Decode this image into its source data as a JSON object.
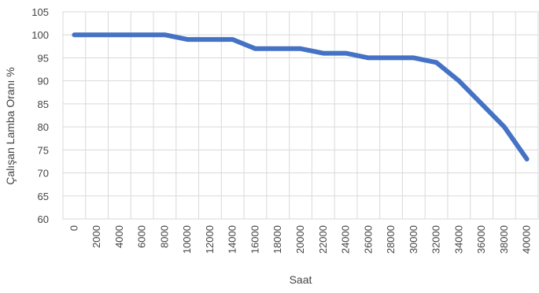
{
  "chart_data": {
    "type": "line",
    "xlabel": "Saat",
    "ylabel": "Çalışan Lamba Oranı %",
    "ylim": [
      60,
      105
    ],
    "yticks": [
      60,
      65,
      70,
      75,
      80,
      85,
      90,
      95,
      100,
      105
    ],
    "xlim": [
      -1000,
      41000
    ],
    "xticks": [
      0,
      2000,
      4000,
      6000,
      8000,
      10000,
      12000,
      14000,
      16000,
      18000,
      20000,
      22000,
      24000,
      26000,
      28000,
      30000,
      32000,
      34000,
      36000,
      38000,
      40000
    ],
    "grid": true,
    "legend": "none",
    "series": [
      {
        "color": "#4472C4",
        "x": [
          0,
          2000,
          4000,
          6000,
          8000,
          10000,
          12000,
          14000,
          16000,
          18000,
          20000,
          22000,
          24000,
          26000,
          28000,
          30000,
          32000,
          34000,
          36000,
          38000,
          40000
        ],
        "y": [
          100,
          100,
          100,
          100,
          100,
          99,
          99,
          99,
          97,
          97,
          97,
          96,
          96,
          95,
          95,
          95,
          94,
          90,
          85,
          80,
          73
        ]
      }
    ]
  },
  "colors": {
    "line": "#4472C4",
    "grid": "#d9d9d9",
    "text": "#444444"
  }
}
